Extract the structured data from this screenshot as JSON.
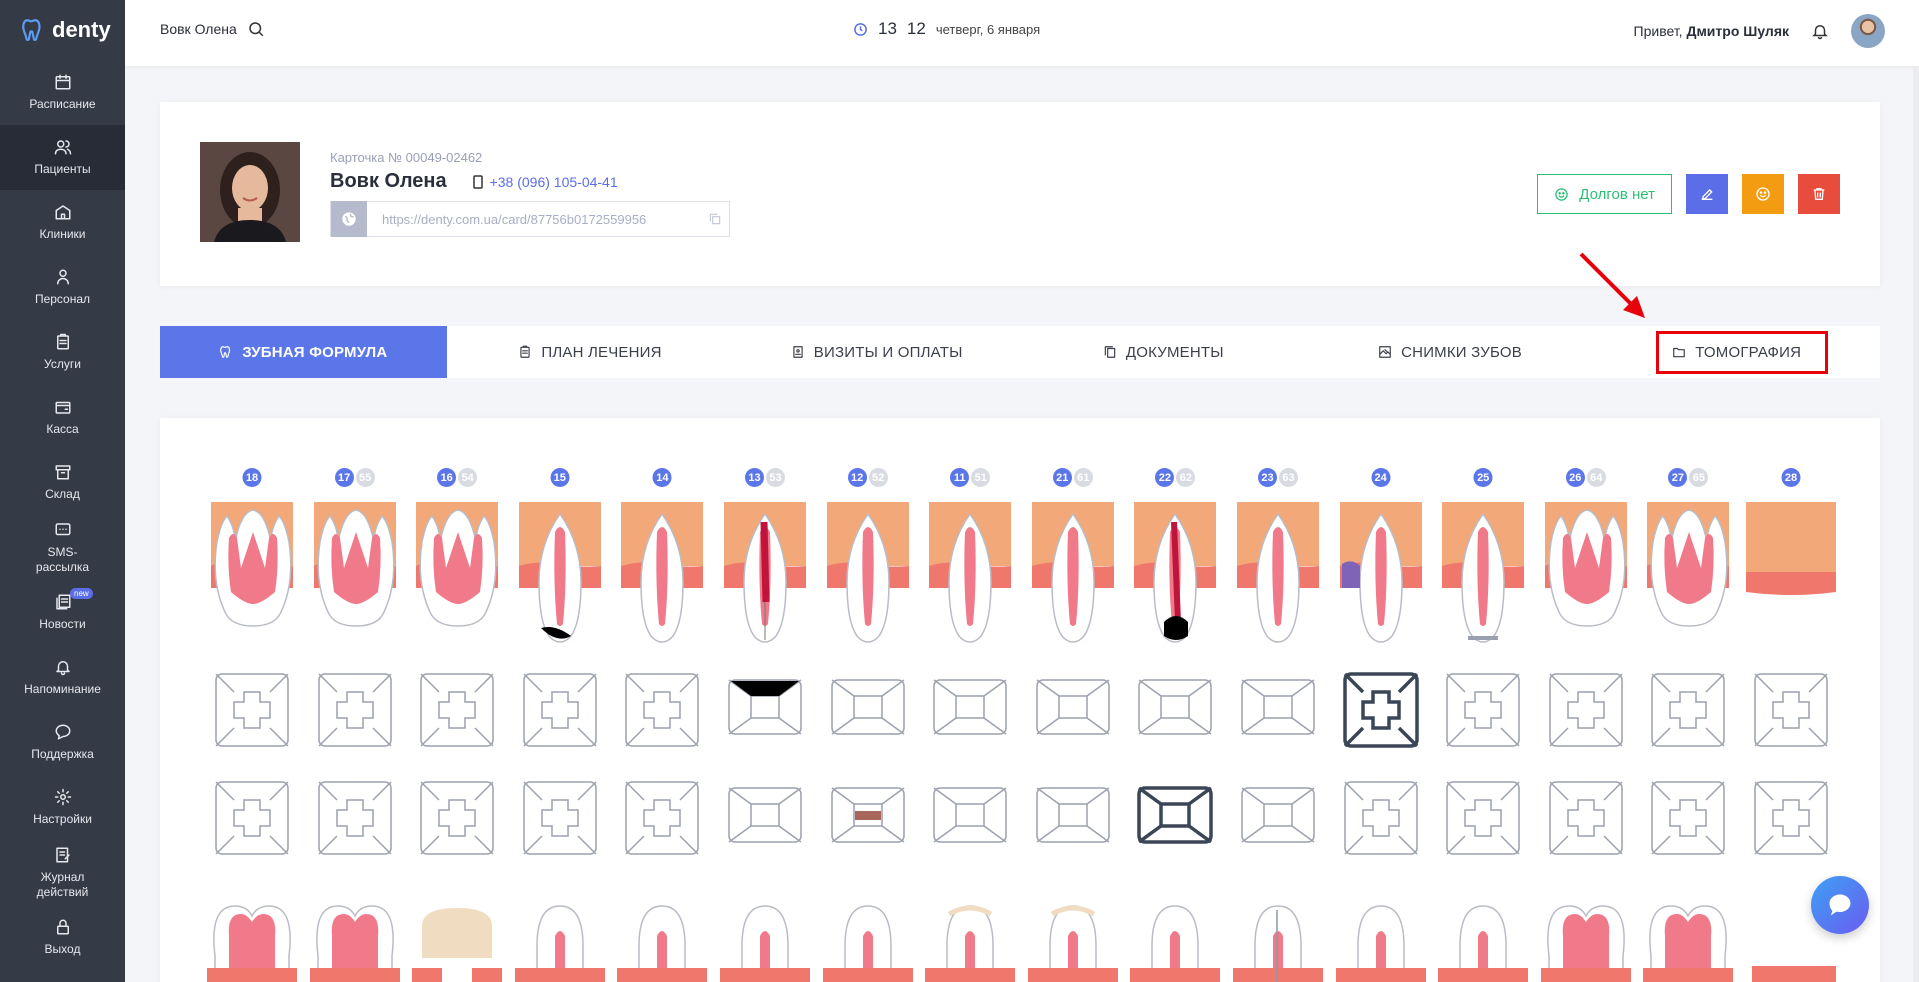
{
  "brand": {
    "name": "denty"
  },
  "sidebar": {
    "items": [
      {
        "label": "Расписание",
        "icon": "calendar-icon"
      },
      {
        "label": "Пациенты",
        "icon": "users-icon",
        "active": true
      },
      {
        "label": "Клиники",
        "icon": "clinic-icon"
      },
      {
        "label": "Персонал",
        "icon": "staff-icon"
      },
      {
        "label": "Услуги",
        "icon": "clipboard-icon"
      },
      {
        "label": "Касса",
        "icon": "wallet-icon"
      },
      {
        "label": "Склад",
        "icon": "archive-icon"
      },
      {
        "label": "SMS-рассылка",
        "icon": "sms-icon"
      },
      {
        "label": "Новости",
        "icon": "news-icon",
        "badge": "new"
      },
      {
        "label": "Напоминание",
        "icon": "bell-icon"
      },
      {
        "label": "Поддержка",
        "icon": "chat-icon"
      },
      {
        "label": "Настройки",
        "icon": "gear-icon"
      },
      {
        "label": "Журнал действий",
        "icon": "journal-icon"
      },
      {
        "label": "Выход",
        "icon": "lock-icon"
      }
    ]
  },
  "topbar": {
    "search_user": "Вовк Олена",
    "hour": "13",
    "minute": "12",
    "date": "четверг, 6 января",
    "greeting": "Привет,",
    "user_name": "Дмитро Шуляк"
  },
  "patient": {
    "card_no": "Карточка № 00049-02462",
    "name": "Вовк Олена",
    "phone": "+38 (096) 105-04-41",
    "link": "https://denty.com.ua/card/87756b0172559956"
  },
  "actions": {
    "debt_label": "Долгов нет",
    "colors": {
      "debt": "#2dbf76",
      "edit": "#5b6ee8",
      "smile": "#f39c12",
      "delete": "#e74c3c"
    }
  },
  "tabs": [
    {
      "label": "ЗУБНАЯ ФОРМУЛА",
      "icon": "tooth-icon",
      "active": true
    },
    {
      "label": "ПЛАН ЛЕЧЕНИЯ",
      "icon": "clipboard-icon"
    },
    {
      "label": "ВИЗИТЫ И ОПЛАТЫ",
      "icon": "receipt-icon"
    },
    {
      "label": "ДОКУМЕНТЫ",
      "icon": "documents-icon"
    },
    {
      "label": "СНИМКИ ЗУБОВ",
      "icon": "image-icon"
    },
    {
      "label": "ТОМОГРАФИЯ",
      "icon": "folder-icon"
    }
  ],
  "teeth_upper": [
    {
      "num": "18",
      "sec": ""
    },
    {
      "num": "17",
      "sec": "55"
    },
    {
      "num": "16",
      "sec": "54"
    },
    {
      "num": "15",
      "sec": ""
    },
    {
      "num": "14",
      "sec": ""
    },
    {
      "num": "13",
      "sec": "53"
    },
    {
      "num": "12",
      "sec": "52"
    },
    {
      "num": "11",
      "sec": "51"
    },
    {
      "num": "21",
      "sec": "61"
    },
    {
      "num": "22",
      "sec": "62"
    },
    {
      "num": "23",
      "sec": "63"
    },
    {
      "num": "24",
      "sec": ""
    },
    {
      "num": "25",
      "sec": ""
    },
    {
      "num": "26",
      "sec": "64"
    },
    {
      "num": "27",
      "sec": "65"
    },
    {
      "num": "28",
      "sec": ""
    }
  ]
}
